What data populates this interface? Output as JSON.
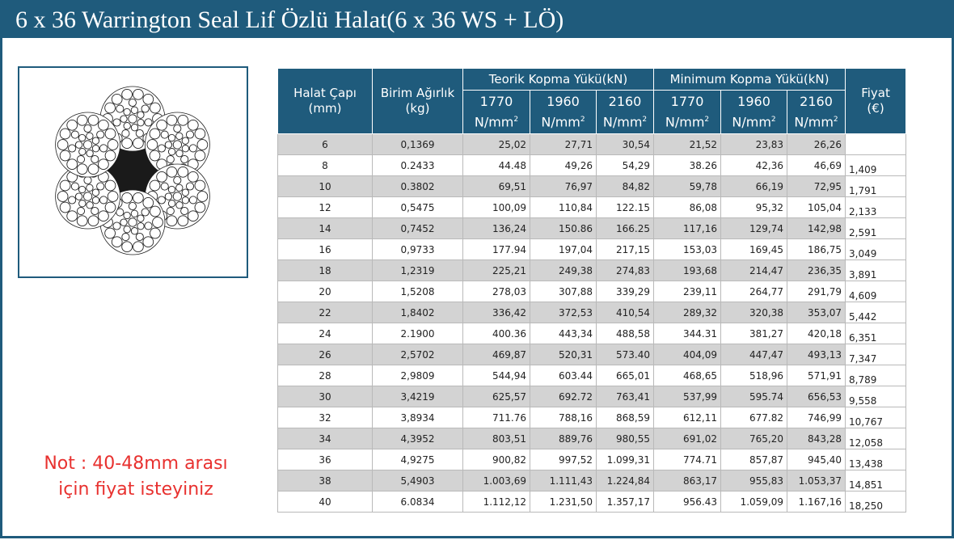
{
  "title": "6 x 36 Warrington Seal Lif Özlü Halat(6 x 36 WS + LÖ)",
  "note": {
    "line1": "Not : 40-48mm arası",
    "line2": "için fiyat isteyiniz"
  },
  "colors": {
    "header": "#1f5b7c",
    "row_shade": "#d3d3d3",
    "note": "#e8312f",
    "core": "#1a1a1a"
  },
  "table": {
    "headers": {
      "diameter_line1": "Halat Çapı",
      "diameter_line2": "(mm)",
      "weight_line1": "Birim Ağırlık",
      "weight_line2": "(kg)",
      "theoretical": "Teorik Kopma Yükü(kN)",
      "minimum": "Minimum Kopma Yükü(kN)",
      "price_line1": "Fiyat",
      "price_line2": "(€)",
      "grade_1770": "1770",
      "grade_1960": "1960",
      "grade_2160": "2160",
      "unit": "N/mm",
      "unit_sup": "2"
    },
    "rows": [
      {
        "d": "6",
        "w": "0,1369",
        "t1": "25,02",
        "t2": "27,71",
        "t3": "30,54",
        "m1": "21,52",
        "m2": "23,83",
        "m3": "26,26",
        "p": ""
      },
      {
        "d": "8",
        "w": "0.2433",
        "t1": "44.48",
        "t2": "49,26",
        "t3": "54,29",
        "m1": "38.26",
        "m2": "42,36",
        "m3": "46,69",
        "p": "1,409"
      },
      {
        "d": "10",
        "w": "0.3802",
        "t1": "69,51",
        "t2": "76,97",
        "t3": "84,82",
        "m1": "59,78",
        "m2": "66,19",
        "m3": "72,95",
        "p": "1,791"
      },
      {
        "d": "12",
        "w": "0,5475",
        "t1": "100,09",
        "t2": "110,84",
        "t3": "122.15",
        "m1": "86,08",
        "m2": "95,32",
        "m3": "105,04",
        "p": "2,133"
      },
      {
        "d": "14",
        "w": "0,7452",
        "t1": "136,24",
        "t2": "150.86",
        "t3": "166.25",
        "m1": "117,16",
        "m2": "129,74",
        "m3": "142,98",
        "p": "2,591"
      },
      {
        "d": "16",
        "w": "0,9733",
        "t1": "177.94",
        "t2": "197,04",
        "t3": "217,15",
        "m1": "153,03",
        "m2": "169,45",
        "m3": "186,75",
        "p": "3,049"
      },
      {
        "d": "18",
        "w": "1,2319",
        "t1": "225,21",
        "t2": "249,38",
        "t3": "274,83",
        "m1": "193,68",
        "m2": "214,47",
        "m3": "236,35",
        "p": "3,891"
      },
      {
        "d": "20",
        "w": "1,5208",
        "t1": "278,03",
        "t2": "307,88",
        "t3": "339,29",
        "m1": "239,11",
        "m2": "264,77",
        "m3": "291,79",
        "p": "4,609"
      },
      {
        "d": "22",
        "w": "1,8402",
        "t1": "336,42",
        "t2": "372,53",
        "t3": "410,54",
        "m1": "289,32",
        "m2": "320,38",
        "m3": "353,07",
        "p": "5,442"
      },
      {
        "d": "24",
        "w": "2.1900",
        "t1": "400.36",
        "t2": "443,34",
        "t3": "488,58",
        "m1": "344.31",
        "m2": "381,27",
        "m3": "420,18",
        "p": "6,351"
      },
      {
        "d": "26",
        "w": "2,5702",
        "t1": "469,87",
        "t2": "520,31",
        "t3": "573.40",
        "m1": "404,09",
        "m2": "447,47",
        "m3": "493,13",
        "p": "7,347"
      },
      {
        "d": "28",
        "w": "2,9809",
        "t1": "544,94",
        "t2": "603.44",
        "t3": "665,01",
        "m1": "468,65",
        "m2": "518,96",
        "m3": "571,91",
        "p": "8,789"
      },
      {
        "d": "30",
        "w": "3,4219",
        "t1": "625,57",
        "t2": "692.72",
        "t3": "763,41",
        "m1": "537,99",
        "m2": "595.74",
        "m3": "656,53",
        "p": "9,558"
      },
      {
        "d": "32",
        "w": "3,8934",
        "t1": "711.76",
        "t2": "788,16",
        "t3": "868,59",
        "m1": "612,11",
        "m2": "677.82",
        "m3": "746,99",
        "p": "10,767"
      },
      {
        "d": "34",
        "w": "4,3952",
        "t1": "803,51",
        "t2": "889,76",
        "t3": "980,55",
        "m1": "691,02",
        "m2": "765,20",
        "m3": "843,28",
        "p": "12,058"
      },
      {
        "d": "36",
        "w": "4,9275",
        "t1": "900,82",
        "t2": "997,52",
        "t3": "1.099,31",
        "m1": "774.71",
        "m2": "857,87",
        "m3": "945,40",
        "p": "13,438"
      },
      {
        "d": "38",
        "w": "5,4903",
        "t1": "1.003,69",
        "t2": "1.111,43",
        "t3": "1.224,84",
        "m1": "863,17",
        "m2": "955,83",
        "m3": "1.053,37",
        "p": "14,851"
      },
      {
        "d": "40",
        "w": "6.0834",
        "t1": "1.112,12",
        "t2": "1.231,50",
        "t3": "1.357,17",
        "m1": "956.43",
        "m2": "1.059,09",
        "m3": "1.167,16",
        "p": "18,250"
      }
    ]
  },
  "illustration": {
    "name": "wire-rope-cross-section",
    "strands": 6,
    "wires_per_strand": 36
  }
}
